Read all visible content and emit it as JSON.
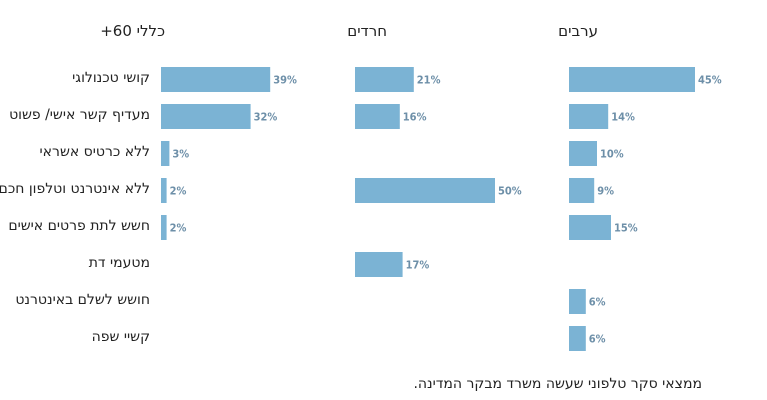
{
  "chart_data": {
    "type": "bar",
    "orientation": "horizontal",
    "categories": [
      "קושי טכנולוגי",
      "מעדיף קשר אישי/ פשוט",
      "ללא כרטיס אשראי",
      "ללא אינטרנט וטלפון חכם",
      "חשש לתת פרטים אישים",
      "מטעמי דת",
      "חושש לשלם באינטרנט",
      "קשיי שפה"
    ],
    "series": [
      {
        "name": "כללי 60+",
        "values": [
          39,
          32,
          3,
          2,
          2,
          null,
          null,
          null
        ]
      },
      {
        "name": "חרדים",
        "values": [
          21,
          16,
          null,
          50,
          null,
          17,
          null,
          null
        ]
      },
      {
        "name": "ערבים",
        "values": [
          45,
          14,
          10,
          9,
          15,
          null,
          6,
          6
        ]
      }
    ],
    "value_suffix": "%",
    "bar_color": "#7bb3d4",
    "label_color": "#6d8fa8"
  },
  "footnote": "ממצאי סקר טלפוני שעשה משרד מבקר המדינה."
}
